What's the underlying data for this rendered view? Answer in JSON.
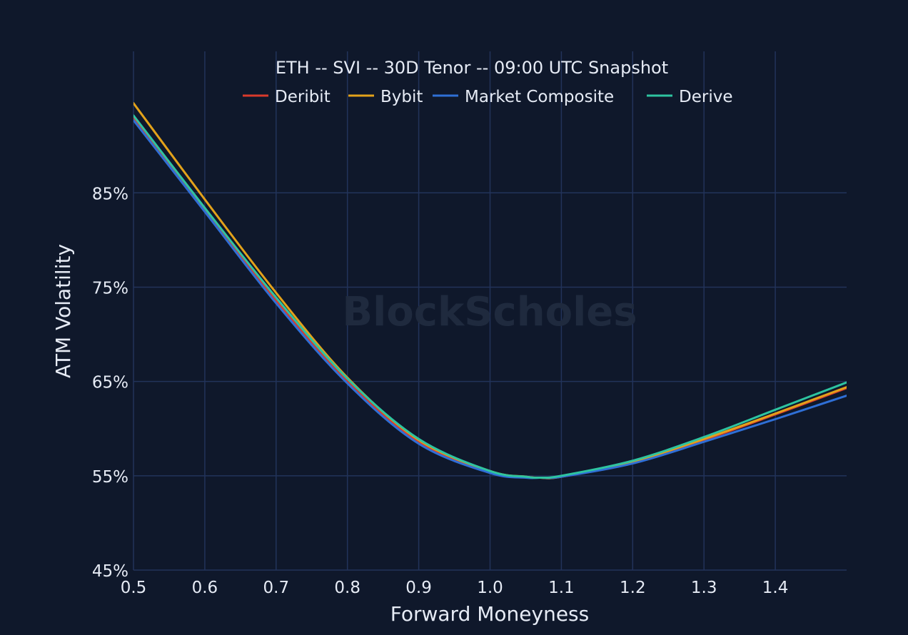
{
  "chart_data": {
    "type": "line",
    "title": "ETH -- SVI -- 30D Tenor -- 09:00 UTC Snapshot",
    "xlabel": "Forward Moneyness",
    "ylabel": "ATM Volatility",
    "xlim": [
      0.5,
      1.5
    ],
    "ylim": [
      45,
      100
    ],
    "x_ticks": [
      0.5,
      0.6,
      0.7,
      0.8,
      0.9,
      1.0,
      1.1,
      1.2,
      1.3,
      1.4
    ],
    "x_tick_labels": [
      "0.5",
      "0.6",
      "0.7",
      "0.8",
      "0.9",
      "1.0",
      "1.1",
      "1.2",
      "1.3",
      "1.4"
    ],
    "y_ticks": [
      45,
      55,
      65,
      75,
      85
    ],
    "y_tick_labels": [
      "45%",
      "55%",
      "65%",
      "75%",
      "85%"
    ],
    "grid": true,
    "legend_position": "top-center",
    "watermark": "BlockScholes",
    "x": [
      0.5,
      0.6,
      0.7,
      0.8,
      0.9,
      1.0,
      1.05,
      1.07,
      1.1,
      1.2,
      1.3,
      1.4,
      1.5
    ],
    "series": [
      {
        "name": "Deribit",
        "color": "#d93a2b",
        "values": [
          93.0,
          83.2,
          73.6,
          65.0,
          58.6,
          55.4,
          54.9,
          54.8,
          54.9,
          56.4,
          58.8,
          61.5,
          64.3
        ]
      },
      {
        "name": "Bybit",
        "color": "#e3a21a",
        "values": [
          94.5,
          84.3,
          74.4,
          65.4,
          58.8,
          55.5,
          54.9,
          54.8,
          54.9,
          56.5,
          58.9,
          61.6,
          64.4
        ]
      },
      {
        "name": "Market Composite",
        "color": "#2f6fd6",
        "values": [
          92.7,
          83.0,
          73.3,
          64.8,
          58.4,
          55.3,
          54.8,
          54.8,
          54.9,
          56.3,
          58.6,
          61.0,
          63.5
        ]
      },
      {
        "name": "Derive",
        "color": "#2ec4a0",
        "values": [
          93.2,
          83.4,
          73.9,
          65.3,
          58.9,
          55.5,
          54.9,
          54.8,
          55.0,
          56.6,
          59.1,
          62.0,
          64.9
        ]
      }
    ]
  },
  "colors": {
    "background": "#0f182b",
    "grid": "#22335a",
    "text": "#e6ebf5",
    "watermark": "#1f2a3e"
  }
}
